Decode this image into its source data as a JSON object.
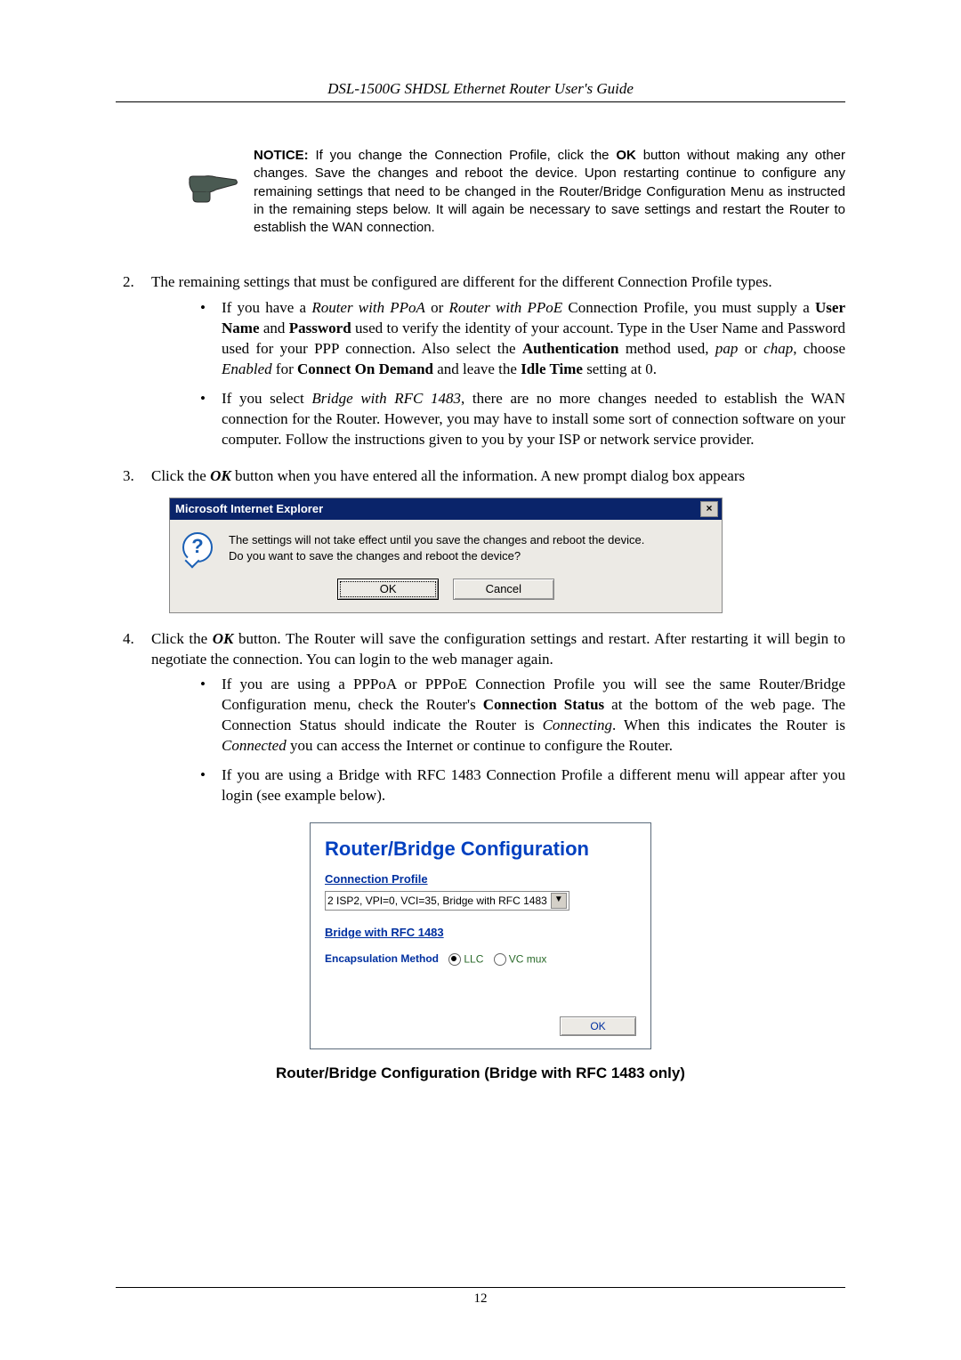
{
  "header": {
    "title": "DSL-1500G SHDSL Ethernet Router User's Guide"
  },
  "notice": {
    "prefix": "NOTICE:",
    "body_parts": [
      " If you change the Connection Profile, click the ",
      "OK",
      " button without making any other changes. Save the changes and reboot the device. Upon restarting continue to configure any remaining settings that need to be changed in the Router/Bridge Configuration Menu as instructed in the remaining steps below. It will again be necessary to save settings and restart the Router to establish the WAN connection."
    ]
  },
  "list": {
    "item2": {
      "num": "2.",
      "text": "The remaining settings that must be configured are different for the different Connection Profile types.",
      "bullets": [
        {
          "segments": [
            {
              "t": "If you have a "
            },
            {
              "t": "Router with PPoA",
              "cls": "ital"
            },
            {
              "t": " or "
            },
            {
              "t": "Router with PPoE",
              "cls": "ital"
            },
            {
              "t": " Connection Profile, you must supply a "
            },
            {
              "t": "User Name",
              "cls": "bold"
            },
            {
              "t": " and "
            },
            {
              "t": "Password",
              "cls": "bold"
            },
            {
              "t": " used to verify the identity of your account. Type in the User Name and Password used for your PPP connection. Also select the "
            },
            {
              "t": "Authentication",
              "cls": "bold"
            },
            {
              "t": " method used, "
            },
            {
              "t": "pap",
              "cls": "ital"
            },
            {
              "t": " or "
            },
            {
              "t": "chap",
              "cls": "ital"
            },
            {
              "t": ", choose "
            },
            {
              "t": "Enabled",
              "cls": "ital"
            },
            {
              "t": " for "
            },
            {
              "t": "Connect On Demand",
              "cls": "bold"
            },
            {
              "t": " and leave the "
            },
            {
              "t": "Idle Time",
              "cls": "bold"
            },
            {
              "t": " setting at 0."
            }
          ]
        },
        {
          "segments": [
            {
              "t": "If you select "
            },
            {
              "t": "Bridge with RFC 1483",
              "cls": "ital"
            },
            {
              "t": ", there are no more changes needed to establish the WAN connection for the Router. However, you may have to install some sort of connection software on your computer. Follow the instructions given to you by your ISP or network service provider."
            }
          ]
        }
      ]
    },
    "item3": {
      "num": "3.",
      "pre": "Click the ",
      "ok": "OK",
      "post": " button when you have entered all the information. A new prompt dialog box appears"
    },
    "item4": {
      "num": "4.",
      "pre": "Click the ",
      "ok": "OK",
      "post": " button. The Router will save the configuration settings and restart. After restarting it will begin to negotiate the connection. You can login to the web manager again.",
      "bullets": [
        {
          "segments": [
            {
              "t": "If you are using a PPPoA or PPPoE Connection Profile you will see the same Router/Bridge Configuration menu, check the Router's "
            },
            {
              "t": "Connection Status",
              "cls": "bold"
            },
            {
              "t": " at the bottom of the web page. The Connection Status should indicate the Router is "
            },
            {
              "t": "Connecting",
              "cls": "ital"
            },
            {
              "t": ". When this indicates the Router is "
            },
            {
              "t": "Connected",
              "cls": "ital"
            },
            {
              "t": " you can access the Internet or continue to configure the Router."
            }
          ]
        },
        {
          "segments": [
            {
              "t": "If you are using a Bridge with RFC 1483 Connection Profile a different menu will appear after you login (see example below)."
            }
          ]
        }
      ]
    }
  },
  "dialog": {
    "title": "Microsoft Internet Explorer",
    "close": "×",
    "q": "?",
    "line1": "The settings will not take effect until you save the changes and reboot the device.",
    "line2": "Do you want to save the changes and reboot the device?",
    "ok": "OK",
    "cancel": "Cancel"
  },
  "config": {
    "title": "Router/Bridge Configuration",
    "profile_label": "Connection Profile",
    "profile_value": "2 ISP2, VPI=0, VCI=35, Bridge with RFC 1483",
    "section": "Bridge with RFC 1483",
    "encap_label": "Encapsulation Method",
    "opt_llc": "LLC",
    "opt_vcmux": "VC mux",
    "ok": "OK"
  },
  "caption": "Router/Bridge Configuration (Bridge with RFC 1483 only)",
  "footer": {
    "page": "12"
  },
  "colors": {
    "titlebar": "#0a246a",
    "dialog_bg": "#eceae5",
    "link_blue": "#0030a0",
    "heading_blue": "#0040c0",
    "green": "#2a6a2a"
  }
}
